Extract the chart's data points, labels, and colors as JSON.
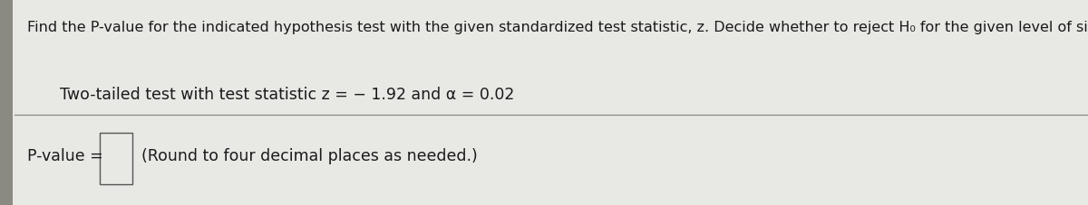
{
  "line1": "Find the P-value for the indicated hypothesis test with the given standardized test statistic, z. Decide whether to reject H₀ for the given level of significance α.",
  "line2": "Two-tailed test with test statistic z = − 1.92 and α = 0.02",
  "line3_prefix": "P-value = ",
  "line3_suffix": "(Round to four decimal places as needed.)",
  "background_color": "#e8e8e5",
  "main_bg_color": "#e0e0dd",
  "text_color": "#1a1a1a",
  "divider_color": "#888888",
  "font_size_line1": 11.5,
  "font_size_line2": 12.5,
  "font_size_line3": 12.5,
  "box_fill": "#e8e8e5",
  "box_edge": "#555555",
  "left_bar_color": "#8a8a82",
  "left_bar_width": 0.012
}
